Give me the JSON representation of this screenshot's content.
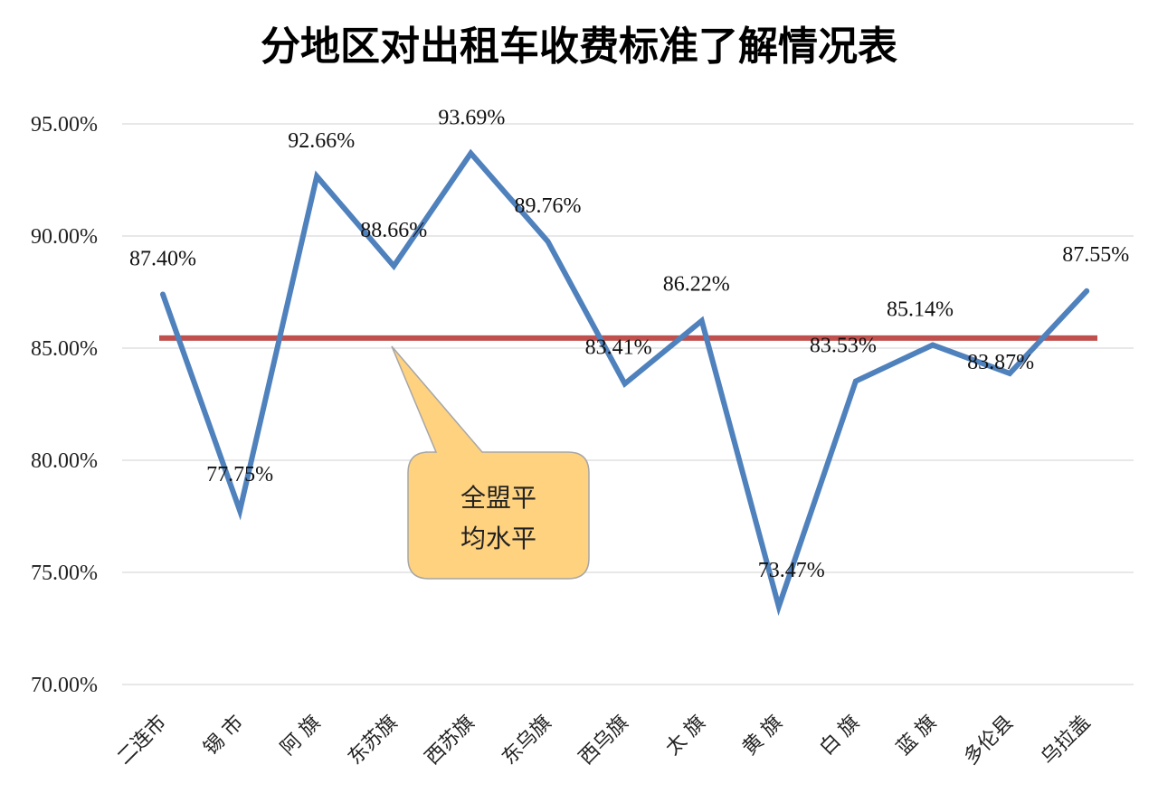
{
  "chart_data": {
    "type": "line",
    "title": "分地区对出租车收费标准了解情况表",
    "categories": [
      "二连市",
      "锡 市",
      "阿 旗",
      "东苏旗",
      "西苏旗",
      "东乌旗",
      "西乌旗",
      "太 旗",
      "黄 旗",
      "白 旗",
      "蓝 旗",
      "多伦县",
      "乌拉盖"
    ],
    "series": [
      {
        "values": [
          87.4,
          77.75,
          92.66,
          88.66,
          93.69,
          89.76,
          83.41,
          86.22,
          73.47,
          83.53,
          85.14,
          83.87,
          87.55
        ],
        "labels": [
          "87.40%",
          "77.75%",
          "92.66%",
          "88.66%",
          "93.69%",
          "89.76%",
          "83.41%",
          "86.22%",
          "73.47%",
          "83.53%",
          "85.14%",
          "83.87%",
          "87.55%"
        ],
        "color": "#4f81bd"
      }
    ],
    "average": {
      "value": 85.45,
      "color": "#c0504d"
    },
    "yticks": [
      "95.00%",
      "90.00%",
      "85.00%",
      "80.00%",
      "75.00%",
      "70.00%"
    ],
    "ytick_values": [
      95,
      90,
      85,
      80,
      75,
      70
    ],
    "ylim": [
      70,
      95
    ],
    "grid": true,
    "legend": "none",
    "callout": {
      "lines": [
        "全盟平",
        "均水平"
      ],
      "fill": "#ffd27f",
      "stroke": "#a6a6a6"
    }
  }
}
